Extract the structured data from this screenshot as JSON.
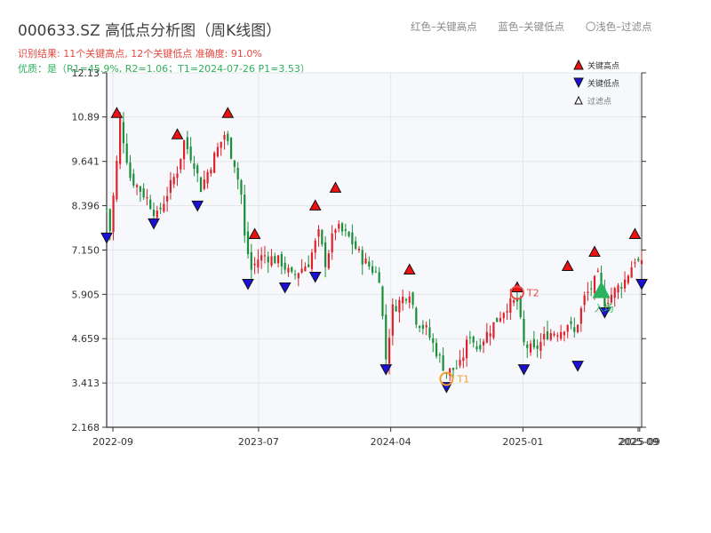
{
  "header": {
    "title": "000633.SZ 高低点分析图（周K线图）",
    "summary": "识别结果: 11个关键高点, 12个关键低点  准确度: 91.0%",
    "quality": "优质：是（R1=45.9%, R2=1.06；T1=2024-07-26 P1=3.53）"
  },
  "top_legend": {
    "red": "红色–关键高点",
    "blue": "蓝色–关键低点",
    "light": "〇浅色–过滤点"
  },
  "side_legend": {
    "high": "关键高点",
    "low": "关键低点",
    "filtered": "过滤点"
  },
  "colors": {
    "up": "#e0202a",
    "down": "#1a8f3a",
    "high_marker": "#ee1111",
    "low_marker": "#1a10d8",
    "circle_t1": "#f0a030",
    "circle_t2": "#e84a4a",
    "buy": "#29b35e",
    "background": "#f6f8fb",
    "grid": "#e3e6ea"
  },
  "chart_data": {
    "type": "candlestick",
    "x_axis": {
      "start": "2022-08-19",
      "end": "2025-09-05",
      "ticks": [
        "2022-09",
        "2023-07",
        "2024-04",
        "2025-01",
        "2025-09"
      ],
      "tick_dates": [
        "2022-09-01",
        "2023-07-01",
        "2024-04-01",
        "2025-01-01",
        "2025-09-01"
      ],
      "overlap_label": "2025-09"
    },
    "y_axis": {
      "min": 2.168,
      "max": 12.13,
      "ticks": [
        "2.168",
        "3.413",
        "4.659",
        "5.905",
        "7.150",
        "8.396",
        "9.641",
        "10.89",
        "12.13"
      ]
    },
    "grid": true,
    "anchors": [
      [
        "2022-08-19",
        8.3
      ],
      [
        "2022-08-26",
        7.7
      ],
      [
        "2022-09-09",
        9.6
      ],
      [
        "2022-09-16",
        10.8
      ],
      [
        "2022-10-07",
        9.2
      ],
      [
        "2022-11-11",
        8.6
      ],
      [
        "2022-12-02",
        8.1
      ],
      [
        "2023-01-13",
        9.4
      ],
      [
        "2023-01-27",
        10.2
      ],
      [
        "2023-02-17",
        9.6
      ],
      [
        "2023-03-03",
        8.9
      ],
      [
        "2023-04-07",
        10.0
      ],
      [
        "2023-04-21",
        10.4
      ],
      [
        "2023-05-12",
        9.6
      ],
      [
        "2023-05-26",
        8.7
      ],
      [
        "2023-06-02",
        7.5
      ],
      [
        "2023-06-16",
        6.6
      ],
      [
        "2023-06-30",
        6.9
      ],
      [
        "2023-07-14",
        7.0
      ],
      [
        "2023-08-18",
        6.8
      ],
      [
        "2023-09-08",
        6.4
      ],
      [
        "2023-10-13",
        6.8
      ],
      [
        "2023-11-03",
        7.6
      ],
      [
        "2023-11-17",
        6.8
      ],
      [
        "2023-12-08",
        7.8
      ],
      [
        "2024-01-05",
        7.5
      ],
      [
        "2024-02-02",
        6.9
      ],
      [
        "2024-03-08",
        6.4
      ],
      [
        "2024-03-22",
        4.1
      ],
      [
        "2024-04-05",
        5.5
      ],
      [
        "2024-05-10",
        6.0
      ],
      [
        "2024-05-24",
        5.2
      ],
      [
        "2024-06-14",
        4.9
      ],
      [
        "2024-07-05",
        4.3
      ],
      [
        "2024-07-26",
        3.7
      ],
      [
        "2024-08-09",
        3.8
      ],
      [
        "2024-08-23",
        3.9
      ],
      [
        "2024-09-13",
        4.8
      ],
      [
        "2024-09-27",
        4.4
      ],
      [
        "2024-10-18",
        4.8
      ],
      [
        "2024-11-08",
        5.2
      ],
      [
        "2024-11-29",
        5.6
      ],
      [
        "2024-12-20",
        5.7
      ],
      [
        "2025-01-03",
        4.5
      ],
      [
        "2025-01-24",
        4.3
      ],
      [
        "2025-02-21",
        4.8
      ],
      [
        "2025-03-21",
        4.9
      ],
      [
        "2025-04-04",
        5.1
      ],
      [
        "2025-04-18",
        4.8
      ],
      [
        "2025-05-09",
        5.8
      ],
      [
        "2025-06-06",
        6.4
      ],
      [
        "2025-06-20",
        5.7
      ],
      [
        "2025-07-11",
        6.0
      ],
      [
        "2025-08-01",
        6.3
      ],
      [
        "2025-08-22",
        6.9
      ],
      [
        "2025-09-05",
        6.7
      ]
    ],
    "key_highs": [
      {
        "date": "2022-09-09",
        "price": 10.8
      },
      {
        "date": "2023-01-13",
        "price": 10.2
      },
      {
        "date": "2023-04-28",
        "price": 10.8
      },
      {
        "date": "2023-06-23",
        "price": 7.4
      },
      {
        "date": "2023-10-27",
        "price": 8.2
      },
      {
        "date": "2023-12-08",
        "price": 8.7
      },
      {
        "date": "2024-05-10",
        "price": 6.4
      },
      {
        "date": "2024-12-20",
        "price": 5.9
      },
      {
        "date": "2025-04-04",
        "price": 6.5
      },
      {
        "date": "2025-05-30",
        "price": 6.9
      },
      {
        "date": "2025-08-22",
        "price": 7.4
      }
    ],
    "key_lows": [
      {
        "date": "2022-08-19",
        "price": 7.7
      },
      {
        "date": "2022-11-25",
        "price": 8.1
      },
      {
        "date": "2023-02-24",
        "price": 8.6
      },
      {
        "date": "2023-06-09",
        "price": 6.4
      },
      {
        "date": "2023-08-25",
        "price": 6.3
      },
      {
        "date": "2023-10-27",
        "price": 6.6
      },
      {
        "date": "2024-03-22",
        "price": 4.0
      },
      {
        "date": "2024-07-26",
        "price": 3.5
      },
      {
        "date": "2025-01-03",
        "price": 4.0
      },
      {
        "date": "2025-04-25",
        "price": 4.1
      },
      {
        "date": "2025-06-20",
        "price": 5.6
      },
      {
        "date": "2025-09-05",
        "price": 6.4
      }
    ],
    "annotations": {
      "t1": {
        "date": "2024-07-26",
        "price": 3.53,
        "label": "T1"
      },
      "t2": {
        "date": "2024-12-20",
        "price": 5.95,
        "label": "T2"
      },
      "buy": {
        "date": "2025-06-13",
        "price": 6.0,
        "label": "入场"
      }
    }
  }
}
